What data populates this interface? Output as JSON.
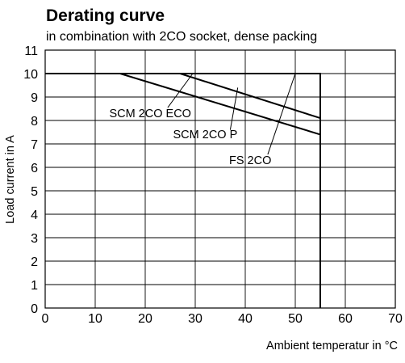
{
  "chart_data": {
    "type": "line",
    "title": "Derating curve",
    "subtitle": "in combination with 2CO socket, dense packing",
    "xlabel": "Ambient temperatur in °C",
    "ylabel": "Load  current in A",
    "xlim": [
      0,
      70
    ],
    "ylim": [
      0,
      11
    ],
    "xticks": [
      "0",
      "10",
      "20",
      "30",
      "40",
      "50",
      "60",
      "70"
    ],
    "yticks": [
      "0",
      "1",
      "2",
      "3",
      "4",
      "5",
      "6",
      "7",
      "8",
      "9",
      "10",
      "11"
    ],
    "grid": true,
    "series": [
      {
        "name": "SCM 2CO ECO",
        "x": [
          0,
          15,
          55
        ],
        "y": [
          10,
          10,
          7.4
        ]
      },
      {
        "name": "SCM 2CO P",
        "x": [
          0,
          27,
          55
        ],
        "y": [
          10,
          10,
          8.1
        ]
      },
      {
        "name": "FS 2CO",
        "x": [
          0,
          55,
          55
        ],
        "y": [
          10,
          10,
          0
        ]
      }
    ],
    "annotations": [
      {
        "text": "SCM 2CO ECO",
        "x": 21,
        "y": 8.0
      },
      {
        "text": "SCM 2CO P",
        "x": 32,
        "y": 7.1
      },
      {
        "text": "FS 2CO",
        "x": 41,
        "y": 6.0
      }
    ],
    "colors": {
      "lines": "#000000",
      "grid": "#000000",
      "background": "#ffffff"
    }
  }
}
